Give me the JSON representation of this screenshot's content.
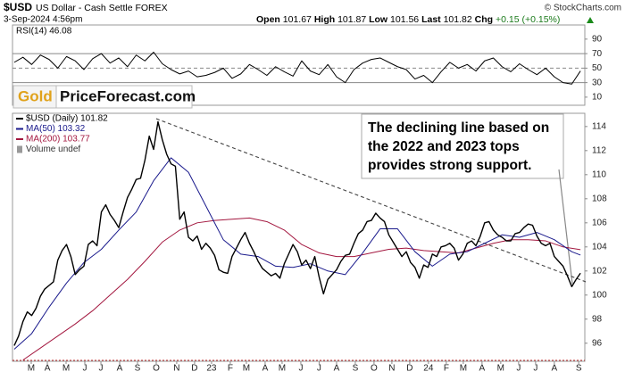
{
  "header": {
    "symbol": "$USD",
    "name": "US Dollar - Cash Settle FOREX",
    "credit": "© StockCharts.com",
    "date": "3-Sep-2024 4:56pm",
    "quote": [
      {
        "label": "Open",
        "value": 101.67
      },
      {
        "label": "High",
        "value": 101.87
      },
      {
        "label": "Low",
        "value": 101.56
      },
      {
        "label": "Last",
        "value": 101.82
      },
      {
        "label": "Chg",
        "value": "+0.15 (+0.15%)"
      }
    ]
  },
  "logo": {
    "gold": "Gold",
    "site": "PriceForecast.com"
  },
  "chart_data": [
    {
      "type": "line",
      "title": "RSI(14) 46.08",
      "xlim": [
        -0.4,
        131
      ],
      "ylim": [
        -1.2,
        109.5
      ],
      "yticks": [
        10,
        30,
        50,
        70,
        90
      ],
      "ref_lines": [
        {
          "value": 70,
          "style": "solid"
        },
        {
          "value": 50,
          "style": "dashed"
        },
        {
          "value": 30,
          "style": "solid"
        }
      ],
      "series": [
        {
          "name": "RSI(14)",
          "color": "#000000",
          "x": [
            0,
            2,
            4,
            6,
            8,
            10,
            12,
            14,
            16,
            18,
            20,
            22,
            24,
            26,
            28,
            30,
            32,
            34,
            36,
            38,
            40,
            42,
            44,
            46,
            48,
            50,
            52,
            54,
            56,
            58,
            60,
            62,
            64,
            66,
            68,
            70,
            72,
            74,
            76,
            78,
            80,
            82,
            84,
            86,
            88,
            90,
            92,
            94,
            96,
            98,
            100,
            102,
            104,
            106,
            108,
            110,
            112,
            114,
            116,
            118,
            120,
            122,
            124,
            126,
            128,
            130
          ],
          "values": [
            58,
            65,
            55,
            68,
            62,
            50,
            66,
            60,
            48,
            63,
            70,
            57,
            64,
            52,
            68,
            60,
            72,
            56,
            48,
            42,
            46,
            38,
            40,
            44,
            50,
            36,
            42,
            55,
            48,
            40,
            52,
            45,
            39,
            60,
            46,
            41,
            55,
            38,
            30,
            48,
            57,
            62,
            64,
            58,
            52,
            48,
            35,
            40,
            30,
            45,
            58,
            50,
            55,
            46,
            60,
            64,
            52,
            45,
            56,
            48,
            41,
            50,
            38,
            30,
            28,
            46.08
          ]
        }
      ]
    },
    {
      "type": "line",
      "xlim": [
        -0.4,
        131
      ],
      "ylim": [
        94.5,
        115.1
      ],
      "yticks": [
        96,
        98,
        100,
        102,
        104,
        106,
        108,
        110,
        112,
        114
      ],
      "xticks": [
        {
          "value": 3.9,
          "label": "M"
        },
        {
          "value": 7.6,
          "label": "A"
        },
        {
          "value": 11.9,
          "label": "M"
        },
        {
          "value": 16.2,
          "label": "J"
        },
        {
          "value": 19.9,
          "label": "J"
        },
        {
          "value": 24.2,
          "label": "A"
        },
        {
          "value": 28.3,
          "label": "S"
        },
        {
          "value": 32.6,
          "label": "O"
        },
        {
          "value": 37.3,
          "label": "N"
        },
        {
          "value": 41.4,
          "label": "D"
        },
        {
          "value": 45.3,
          "label": "23"
        },
        {
          "value": 49.6,
          "label": "F"
        },
        {
          "value": 53.3,
          "label": "M"
        },
        {
          "value": 57.6,
          "label": "A"
        },
        {
          "value": 61.5,
          "label": "M"
        },
        {
          "value": 65.8,
          "label": "J"
        },
        {
          "value": 70,
          "label": "J"
        },
        {
          "value": 74,
          "label": "A"
        },
        {
          "value": 78.3,
          "label": "S"
        },
        {
          "value": 82.6,
          "label": "O"
        },
        {
          "value": 86.7,
          "label": "N"
        },
        {
          "value": 90.8,
          "label": "D"
        },
        {
          "value": 95.1,
          "label": "24"
        },
        {
          "value": 99.2,
          "label": "F"
        },
        {
          "value": 103.1,
          "label": "M"
        },
        {
          "value": 107.4,
          "label": "A"
        },
        {
          "value": 111.7,
          "label": "M"
        },
        {
          "value": 115.8,
          "label": "J"
        },
        {
          "value": 119.7,
          "label": "J"
        },
        {
          "value": 124,
          "label": "A"
        },
        {
          "value": 129.6,
          "label": "S"
        }
      ],
      "legend_note": "Volume undef",
      "series": [
        {
          "name": "$USD (Daily) 101.82",
          "color": "#000000",
          "x": [
            0,
            1,
            2,
            3,
            4,
            5,
            6,
            7,
            8,
            9,
            10,
            11,
            12,
            13,
            14,
            15,
            16,
            17,
            18,
            19,
            20,
            21,
            22,
            23,
            24,
            25,
            26,
            27,
            28,
            29,
            30,
            31,
            32,
            33,
            34,
            35,
            36,
            37,
            38,
            39,
            40,
            41,
            42,
            43,
            44,
            45,
            46,
            47,
            48,
            49,
            50,
            51,
            52,
            53,
            54,
            55,
            56,
            57,
            58,
            59,
            60,
            61,
            62,
            63,
            64,
            65,
            66,
            67,
            68,
            69,
            70,
            71,
            72,
            73,
            74,
            75,
            76,
            77,
            78,
            79,
            80,
            81,
            82,
            83,
            84,
            85,
            86,
            87,
            88,
            89,
            90,
            91,
            92,
            93,
            94,
            95,
            96,
            97,
            98,
            99,
            100,
            101,
            102,
            103,
            104,
            105,
            106,
            107,
            108,
            109,
            110,
            111,
            112,
            113,
            114,
            115,
            116,
            117,
            118,
            119,
            120,
            121,
            122,
            123,
            124,
            125,
            126,
            127,
            128,
            129,
            130
          ],
          "values": [
            95.8,
            96.6,
            97.8,
            98.6,
            98.3,
            98.9,
            99.9,
            100.5,
            100.8,
            101.1,
            102.9,
            103.7,
            104.2,
            103.2,
            101.7,
            102.1,
            102.4,
            104.2,
            104.5,
            104.1,
            106.9,
            107.5,
            106.7,
            106.2,
            105.6,
            106.9,
            108.1,
            108.8,
            109.6,
            109.7,
            111.2,
            113.2,
            112.1,
            114.4,
            112.9,
            111.7,
            110.9,
            110.7,
            106.3,
            106.9,
            104.8,
            104.5,
            104.9,
            103.8,
            104.3,
            103.9,
            103.3,
            102.1,
            101.9,
            101.8,
            103.2,
            103.9,
            104.6,
            105.2,
            104.3,
            103.6,
            102.8,
            102.2,
            101.9,
            101.6,
            101.8,
            101.4,
            102.6,
            103.4,
            104.2,
            103.6,
            102.5,
            102.9,
            102.2,
            103.2,
            101.5,
            100.1,
            101.3,
            101.7,
            102.1,
            102.8,
            103.3,
            103.4,
            104.3,
            105.1,
            105.4,
            106.1,
            106.2,
            106.8,
            106.4,
            106.1,
            105.0,
            104.4,
            103.8,
            103.2,
            103.6,
            102.7,
            102.3,
            101.4,
            102.5,
            102.3,
            103.4,
            103.2,
            104.0,
            104.1,
            104.3,
            103.9,
            102.9,
            103.4,
            104.3,
            104.5,
            104.1,
            104.9,
            106.0,
            106.1,
            105.4,
            105.0,
            104.8,
            104.5,
            104.5,
            105.1,
            105.2,
            105.6,
            105.9,
            105.8,
            104.9,
            104.3,
            104.1,
            104.3,
            103.2,
            102.8,
            102.4,
            101.6,
            100.7,
            101.3,
            101.82
          ]
        },
        {
          "name": "MA(50) 103.32",
          "color": "#1a1a8c",
          "x": [
            0,
            4,
            8,
            12,
            16,
            20,
            24,
            28,
            32,
            36,
            40,
            44,
            48,
            52,
            56,
            60,
            64,
            68,
            72,
            76,
            80,
            84,
            88,
            92,
            96,
            100,
            104,
            108,
            112,
            116,
            120,
            124,
            128,
            130
          ],
          "values": [
            95.5,
            96.8,
            99.0,
            101.0,
            102.7,
            103.8,
            105.4,
            106.9,
            109.5,
            111.4,
            110.2,
            107.4,
            104.6,
            103.4,
            103.2,
            102.4,
            102.3,
            102.6,
            102.0,
            101.7,
            103.5,
            105.5,
            105.5,
            103.6,
            102.4,
            103.4,
            103.6,
            104.3,
            105.0,
            104.8,
            105.2,
            104.6,
            103.6,
            103.32
          ]
        },
        {
          "name": "MA(200) 103.77",
          "color": "#a3173f",
          "x": [
            2,
            6,
            10,
            14,
            18,
            22,
            26,
            30,
            34,
            38,
            42,
            46,
            50,
            54,
            58,
            62,
            66,
            70,
            74,
            78,
            82,
            86,
            90,
            94,
            98,
            102,
            106,
            110,
            114,
            118,
            122,
            126,
            130
          ],
          "values": [
            94.6,
            95.6,
            96.6,
            97.6,
            98.7,
            100.0,
            101.3,
            102.8,
            104.4,
            105.4,
            106.0,
            106.2,
            106.3,
            106.4,
            106.1,
            105.4,
            104.2,
            103.5,
            103.2,
            103.2,
            103.5,
            103.8,
            103.9,
            103.7,
            103.6,
            103.5,
            103.9,
            104.3,
            104.6,
            104.6,
            104.5,
            104.0,
            103.77
          ]
        }
      ],
      "trendline": {
        "x": [
          32.6,
          131.2
        ],
        "values": [
          114.65,
          101.1
        ]
      },
      "annotation": [
        "The declining line based on",
        "the 2022 and 2023 tops",
        "provides strong support."
      ]
    }
  ]
}
